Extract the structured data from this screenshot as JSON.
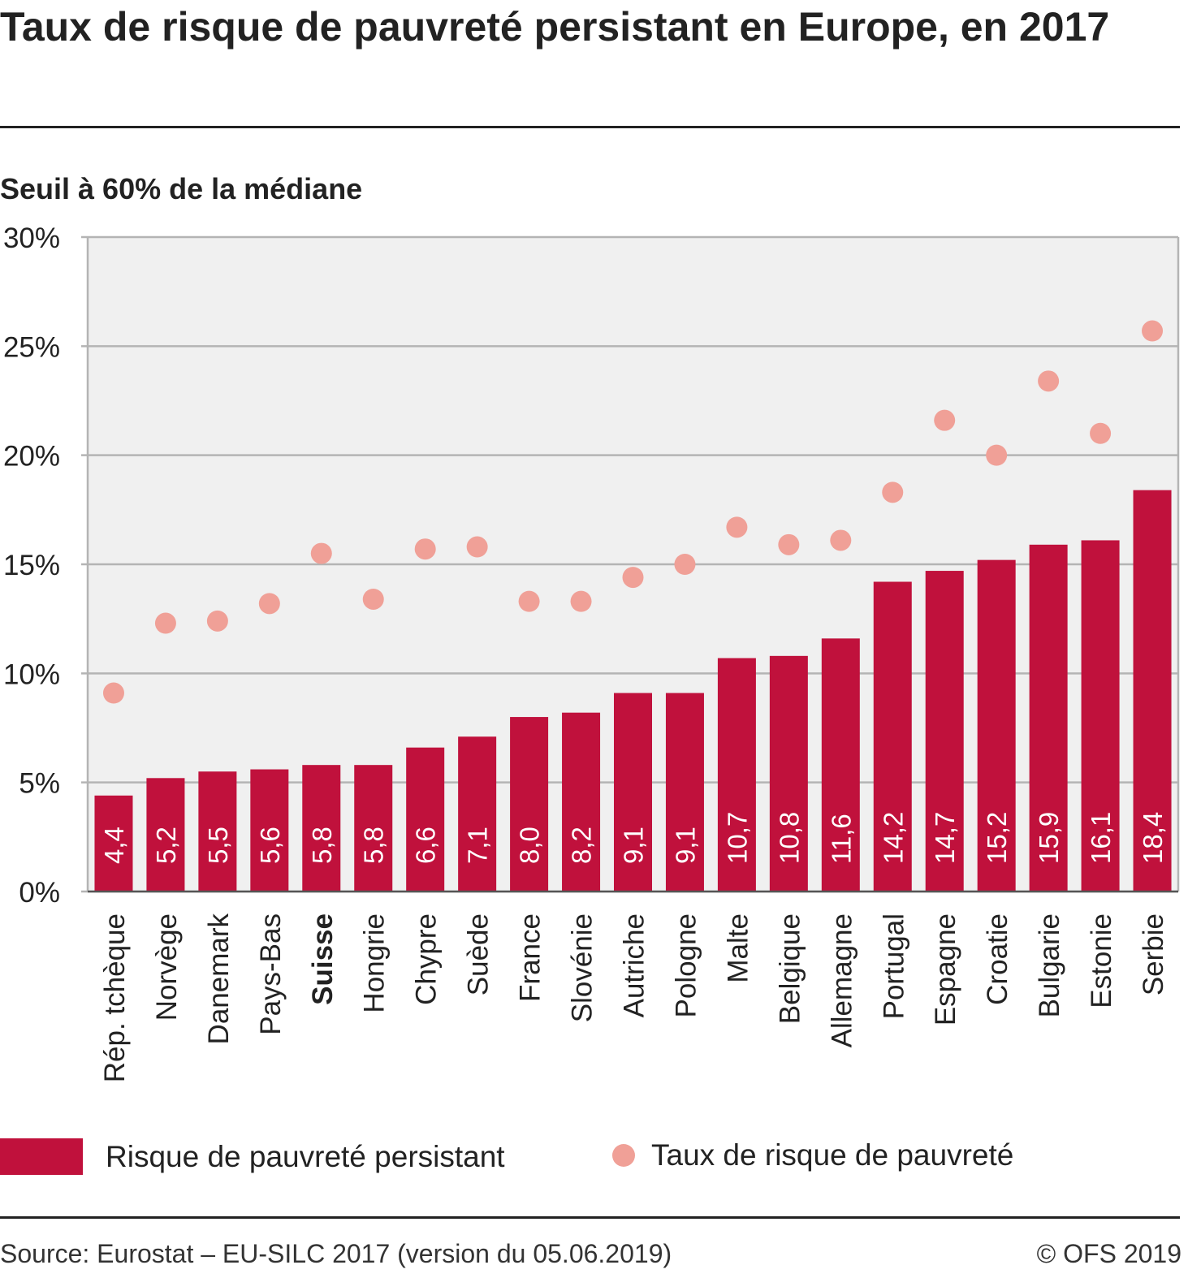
{
  "title": "Taux de risque de pauvreté persistant en Europe, en 2017",
  "subtitle": "Seuil à 60% de la médiane",
  "colors": {
    "bar": "#c0113c",
    "dot": "#f0a097",
    "plot_bg": "#f0f0f0",
    "grid": "#b4b4b4"
  },
  "chart_data": {
    "type": "bar",
    "categories": [
      "Rép. tchèque",
      "Norvège",
      "Danemark",
      "Pays-Bas",
      "Suisse",
      "Hongrie",
      "Chypre",
      "Suède",
      "France",
      "Slovénie",
      "Autriche",
      "Pologne",
      "Malte",
      "Belgique",
      "Allemagne",
      "Portugal",
      "Espagne",
      "Croatie",
      "Bulgarie",
      "Estonie",
      "Serbie"
    ],
    "highlighted_category": "Suisse",
    "series": [
      {
        "name": "Risque de pauvreté persistant",
        "type": "bar",
        "values": [
          4.4,
          5.2,
          5.5,
          5.6,
          5.8,
          5.8,
          6.6,
          7.1,
          8.0,
          8.2,
          9.1,
          9.1,
          10.7,
          10.8,
          11.6,
          14.2,
          14.7,
          15.2,
          15.9,
          16.1,
          18.4
        ],
        "labels": [
          "4,4",
          "5,2",
          "5,5",
          "5,6",
          "5,8",
          "5,8",
          "6,6",
          "7,1",
          "8,0",
          "8,2",
          "9,1",
          "9,1",
          "10,7",
          "10,8",
          "11,6",
          "14,2",
          "14,7",
          "15,2",
          "15,9",
          "16,1",
          "18,4"
        ]
      },
      {
        "name": "Taux de risque de pauvreté",
        "type": "scatter",
        "values": [
          9.1,
          12.3,
          12.4,
          13.2,
          15.5,
          13.4,
          15.7,
          15.8,
          13.3,
          13.3,
          14.4,
          15.0,
          16.7,
          15.9,
          16.1,
          18.3,
          21.6,
          20.0,
          23.4,
          21.0,
          25.7
        ]
      }
    ],
    "ylim": [
      0,
      30
    ],
    "yticks": [
      0,
      5,
      10,
      15,
      20,
      25,
      30
    ],
    "ytick_labels": [
      "0%",
      "5%",
      "10%",
      "15%",
      "20%",
      "25%",
      "30%"
    ],
    "grid": true,
    "legend": "bottom"
  },
  "footer": {
    "source": "Source: Eurostat – EU-SILC 2017 (version du 05.06.2019)",
    "copyright": "© OFS 2019"
  }
}
